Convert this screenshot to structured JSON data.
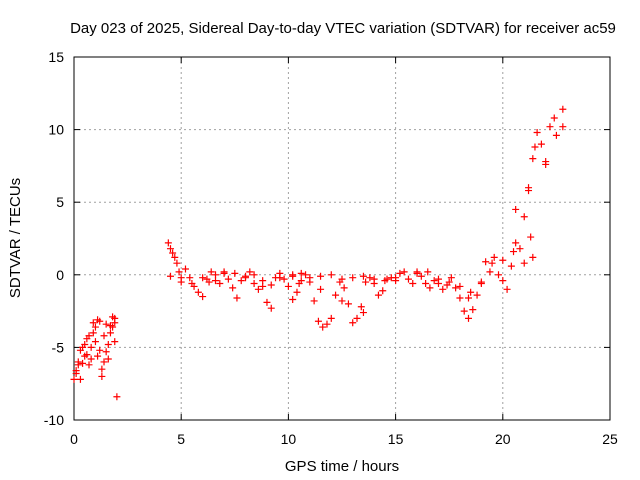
{
  "chart_data": {
    "type": "scatter",
    "title": "Day 023 of 2025, Sidereal Day-to-day VTEC variation (SDTVAR) for receiver ac59",
    "xlabel": "GPS time / hours",
    "ylabel": "SDTVAR / TECUs",
    "xlim": [
      0,
      25
    ],
    "ylim": [
      -10,
      15
    ],
    "xticks": [
      "0",
      "5",
      "10",
      "15",
      "20",
      "25"
    ],
    "yticks": [
      "-10",
      "-5",
      "0",
      "5",
      "10",
      "15"
    ],
    "grid": true,
    "marker": "plus",
    "color": "#ff0000",
    "series": [
      {
        "name": "SDTVAR",
        "x": [
          0.0,
          0.1,
          0.2,
          0.3,
          0.4,
          0.5,
          0.6,
          0.7,
          0.8,
          0.9,
          1.0,
          1.1,
          1.2,
          1.3,
          1.4,
          1.5,
          1.6,
          1.7,
          1.8,
          1.9,
          0.1,
          0.3,
          0.5,
          0.7,
          0.9,
          1.1,
          1.3,
          1.5,
          1.7,
          1.9,
          0.2,
          0.4,
          0.6,
          0.8,
          1.0,
          1.2,
          1.4,
          1.6,
          1.8,
          1.9,
          2.0,
          4.4,
          4.5,
          4.6,
          4.7,
          4.8,
          4.9,
          5.0,
          5.2,
          5.4,
          5.6,
          5.8,
          6.0,
          6.2,
          6.4,
          6.6,
          6.8,
          7.0,
          7.2,
          7.4,
          7.6,
          7.8,
          8.0,
          8.2,
          8.4,
          8.6,
          8.8,
          9.0,
          9.2,
          9.4,
          9.6,
          9.8,
          10.0,
          10.2,
          10.4,
          10.6,
          10.8,
          11.0,
          11.2,
          11.4,
          11.6,
          11.8,
          12.0,
          12.2,
          12.4,
          12.6,
          12.8,
          13.0,
          13.2,
          13.4,
          13.6,
          13.8,
          14.0,
          14.2,
          14.4,
          14.6,
          14.8,
          15.0,
          15.2,
          15.4,
          15.6,
          15.8,
          16.0,
          16.2,
          16.4,
          16.6,
          16.8,
          17.0,
          17.2,
          17.4,
          17.6,
          17.8,
          18.0,
          18.2,
          18.4,
          18.6,
          18.8,
          19.0,
          19.2,
          19.4,
          19.6,
          19.8,
          20.0,
          20.2,
          20.4,
          20.6,
          20.8,
          21.0,
          21.2,
          21.4,
          21.6,
          21.8,
          22.0,
          22.2,
          22.4,
          22.8,
          4.5,
          5.0,
          5.5,
          6.0,
          6.3,
          6.6,
          7.0,
          7.5,
          8.0,
          8.4,
          8.8,
          9.2,
          9.6,
          10.2,
          10.6,
          11.0,
          11.5,
          12.0,
          12.5,
          13.0,
          13.5,
          14.0,
          14.5,
          15.0,
          16.0,
          16.5,
          17.0,
          17.5,
          18.0,
          18.5,
          19.0,
          19.5,
          20.0,
          20.5,
          21.0,
          21.5,
          22.0,
          22.5,
          22.8,
          10.2,
          10.5,
          11.5,
          12.5,
          13.5,
          18.4,
          20.6,
          21.2,
          21.3,
          21.4
        ],
        "y": [
          -7.2,
          -6.6,
          -6.0,
          -5.2,
          -6.1,
          -4.8,
          -5.5,
          -4.2,
          -5.8,
          -3.3,
          -4.6,
          -3.1,
          -5.2,
          -7.0,
          -6.0,
          -3.4,
          -5.8,
          -4.0,
          -2.9,
          -4.6,
          -6.8,
          -7.2,
          -5.6,
          -6.2,
          -4.0,
          -5.6,
          -6.5,
          -5.3,
          -3.5,
          -3.3,
          -6.2,
          -5.0,
          -4.4,
          -5.0,
          -3.6,
          -3.2,
          -4.2,
          -4.8,
          -3.6,
          -3.0,
          -8.4,
          2.2,
          1.8,
          1.5,
          1.2,
          0.8,
          0.2,
          -0.2,
          0.4,
          -0.2,
          -0.8,
          -1.2,
          -1.5,
          -0.3,
          0.2,
          -0.4,
          -0.6,
          0.1,
          -0.3,
          -0.9,
          -1.6,
          -0.4,
          -0.1,
          0.2,
          -0.6,
          -1.0,
          -0.8,
          -1.9,
          -2.3,
          -0.2,
          0.1,
          -0.3,
          -0.8,
          -1.7,
          -1.2,
          -0.4,
          0.0,
          -0.5,
          -1.8,
          -3.2,
          -3.6,
          -3.4,
          -3.0,
          -1.4,
          -0.5,
          -0.9,
          -2.0,
          -3.3,
          -3.0,
          -2.2,
          -0.5,
          -0.2,
          -0.6,
          -1.4,
          -1.1,
          -0.3,
          -0.2,
          -0.4,
          0.1,
          0.2,
          -0.3,
          -0.6,
          0.2,
          -0.1,
          -0.6,
          -0.9,
          -0.4,
          -0.6,
          -1.0,
          -0.7,
          -0.2,
          -0.9,
          -1.6,
          -2.5,
          -3.0,
          -2.4,
          -1.4,
          -0.5,
          0.9,
          0.2,
          1.2,
          0.0,
          -0.4,
          -1.0,
          0.6,
          2.2,
          1.8,
          0.8,
          6.0,
          8.0,
          9.8,
          9.0,
          7.8,
          10.2,
          10.8,
          11.4,
          -0.1,
          -0.5,
          -0.6,
          -0.2,
          -0.5,
          0.0,
          0.2,
          0.1,
          -0.2,
          0.0,
          -0.4,
          -0.7,
          -0.2,
          0.0,
          0.1,
          -0.2,
          -0.1,
          0.0,
          -0.3,
          -0.2,
          -0.1,
          -0.3,
          -0.4,
          -0.2,
          0.1,
          0.2,
          -0.3,
          -0.5,
          -0.8,
          -1.2,
          -0.6,
          0.8,
          1.0,
          1.6,
          4.0,
          8.8,
          7.6,
          9.6,
          10.2,
          -0.1,
          -0.6,
          -1.0,
          -1.8,
          -2.6,
          -1.6,
          4.5,
          5.8,
          2.6,
          1.2
        ]
      }
    ]
  }
}
